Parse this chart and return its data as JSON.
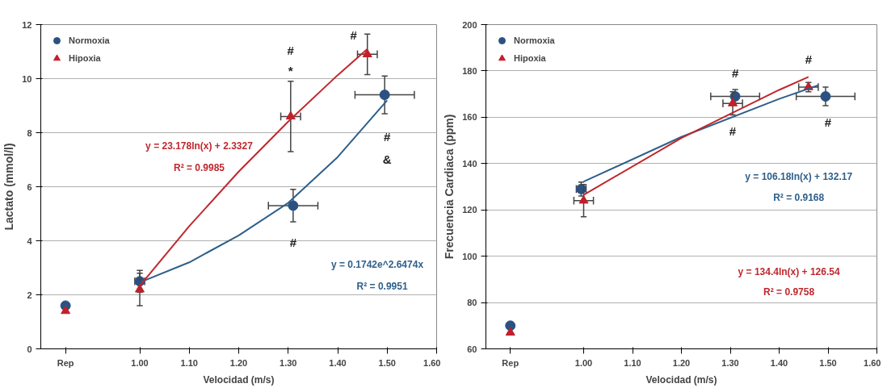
{
  "chart_data": [
    {
      "type": "scatter",
      "xlabel": "Velocidad (m/s)",
      "ylabel": "Lactato (mmol/l)",
      "xlim": [
        0.8,
        1.6
      ],
      "ylim": [
        0,
        12
      ],
      "xticks": [
        {
          "value": 0.85,
          "label": "Rep"
        },
        {
          "value": 1.0,
          "label": "1.00"
        },
        {
          "value": 1.1,
          "label": "1.10"
        },
        {
          "value": 1.2,
          "label": "1.20"
        },
        {
          "value": 1.3,
          "label": "1.30"
        },
        {
          "value": 1.4,
          "label": "1.40"
        },
        {
          "value": 1.5,
          "label": "1.50"
        },
        {
          "value": 1.6,
          "label": "1.60"
        }
      ],
      "yticks": [
        0,
        2,
        4,
        6,
        8,
        10,
        12
      ],
      "grid": "y",
      "legend": "top left",
      "series": [
        {
          "name": "Normoxia",
          "color": "#2b5182",
          "marker": "circle",
          "x": [
            0.85,
            1.0,
            1.31,
            1.495
          ],
          "values": [
            1.6,
            2.5,
            5.3,
            9.4
          ],
          "errors": [
            null,
            0.4,
            0.6,
            0.7
          ],
          "xerrors": [
            null,
            0.01,
            0.05,
            0.06
          ]
        },
        {
          "name": "Hipoxia",
          "color": "#c0202a",
          "marker": "triangle",
          "x": [
            0.85,
            1.0,
            1.305,
            1.46
          ],
          "values": [
            1.4,
            2.2,
            8.6,
            10.9
          ],
          "errors": [
            null,
            0.6,
            1.3,
            0.75
          ],
          "xerrors": [
            null,
            null,
            0.02,
            0.02
          ]
        },
        {
          "type": "line",
          "color": "#2e5f8a",
          "x": [
            1.0,
            1.1,
            1.2,
            1.3,
            1.4,
            1.5
          ],
          "values": [
            2.46,
            3.2,
            4.2,
            5.4,
            7.1,
            9.2
          ]
        },
        {
          "type": "line",
          "color": "#c0272d",
          "x": [
            1.0,
            1.1,
            1.2,
            1.3,
            1.4,
            1.46
          ],
          "values": [
            2.33,
            4.54,
            6.56,
            8.41,
            10.13,
            11.1
          ]
        }
      ],
      "annotations": [
        "#",
        "*",
        "#",
        "#",
        "&",
        "#",
        "y = 23.178ln(x) + 2.3327",
        "R² = 0.9985",
        "y = 0.1742e^2.6474x",
        "R² = 0.9951"
      ]
    },
    {
      "type": "scatter",
      "xlabel": "Velocidad (m/s)",
      "ylabel": "Frecuencia Cardiaca (ppm)",
      "xlim": [
        0.8,
        1.6
      ],
      "ylim": [
        60,
        200
      ],
      "xticks": [
        {
          "value": 0.85,
          "label": "Rep"
        },
        {
          "value": 1.0,
          "label": "1.00"
        },
        {
          "value": 1.1,
          "label": "1.10"
        },
        {
          "value": 1.2,
          "label": "1.20"
        },
        {
          "value": 1.3,
          "label": "1.30"
        },
        {
          "value": 1.4,
          "label": "1.40"
        },
        {
          "value": 1.5,
          "label": "1.50"
        },
        {
          "value": 1.6,
          "label": "1.60"
        }
      ],
      "yticks": [
        60,
        80,
        100,
        120,
        140,
        160,
        180,
        200
      ],
      "grid": "y",
      "legend": "top left",
      "series": [
        {
          "name": "Normoxia",
          "color": "#2b5182",
          "marker": "circle",
          "x": [
            0.85,
            0.995,
            1.31,
            1.495
          ],
          "values": [
            70,
            129,
            169,
            169
          ],
          "errors": [
            null,
            3,
            3,
            4
          ],
          "xerrors": [
            null,
            0.01,
            0.05,
            0.06
          ]
        },
        {
          "name": "Hipoxia",
          "color": "#c0202a",
          "marker": "triangle",
          "x": [
            0.85,
            1.0,
            1.305,
            1.46
          ],
          "values": [
            67,
            124,
            166,
            173
          ],
          "errors": [
            null,
            7,
            5,
            2
          ],
          "xerrors": [
            null,
            0.02,
            0.02,
            0.02
          ]
        },
        {
          "type": "line",
          "color": "#2e5f8a",
          "x": [
            1.0,
            1.2,
            1.4,
            1.48
          ],
          "values": [
            132.2,
            151.5,
            167.9,
            173.8
          ]
        },
        {
          "type": "line",
          "color": "#c0272d",
          "x": [
            1.0,
            1.2,
            1.4,
            1.46
          ],
          "values": [
            126.5,
            151.0,
            171.8,
            177.4
          ]
        }
      ],
      "annotations": [
        "#",
        "#",
        "#",
        "#",
        "y = 106.18ln(x) + 132.17",
        "R² = 0.9168",
        "y = 134.4ln(x) + 126.54",
        "R² = 0.9758"
      ]
    }
  ]
}
